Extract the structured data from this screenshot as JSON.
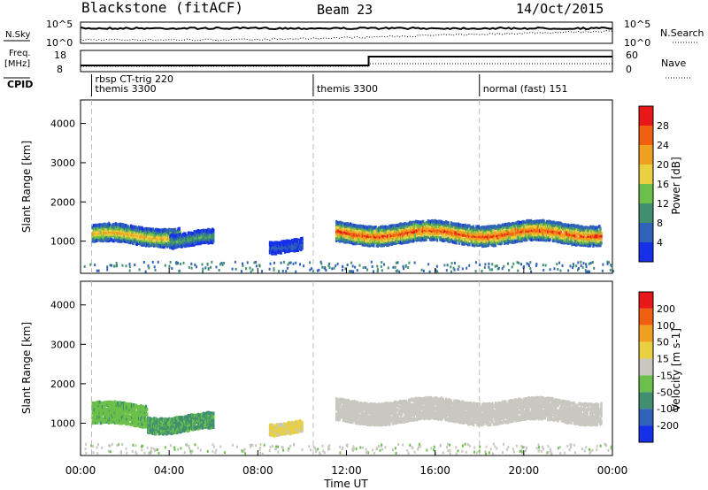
{
  "header": {
    "station": "Blackstone (fitACF)",
    "beam": "Beam 23",
    "date": "14/Oct/2015"
  },
  "top_panels": {
    "nsky_label": "N.Sky",
    "nsky_ticks": [
      "10^5",
      "10^0"
    ],
    "nsearch_label": "N.Search",
    "nsearch_ticks": [
      "10^5",
      "10^0"
    ],
    "freq_label": "Freq.",
    "freq_unit": "[MHz]",
    "freq_ticks": [
      "18",
      "8"
    ],
    "nave_label": "Nave",
    "nave_ticks": [
      "60",
      "0"
    ],
    "cpid_label": "CPID",
    "cpid_segments": [
      {
        "name": "rbsp CT-trig 220",
        "start_hour": 0.5
      },
      {
        "name": "themis 3300",
        "start_hour": 0.5
      },
      {
        "name": "themis 3300",
        "start_hour": 10.5
      },
      {
        "name": "normal (fast) 151",
        "start_hour": 18.0
      }
    ],
    "freq_step_hour": 13.0
  },
  "chart_data": [
    {
      "type": "heatmap",
      "name": "power",
      "ylabel": "Slant Range [km]",
      "ylim": [
        180,
        4600
      ],
      "xlim": [
        0,
        24
      ],
      "yticks": [
        "1000",
        "2000",
        "3000",
        "4000"
      ],
      "colorbar": {
        "label": "Power [dB]",
        "ticks": [
          "4",
          "8",
          "12",
          "16",
          "20",
          "24",
          "28"
        ],
        "range": [
          0,
          32
        ],
        "colors": [
          "#1530e8",
          "#2f62b8",
          "#3f8f70",
          "#6cc04a",
          "#e8d040",
          "#f0a020",
          "#f06010",
          "#e81818"
        ]
      },
      "echo_bands": [
        {
          "x": [
            0.5,
            4.5
          ],
          "center_km": 1150,
          "width_km": 400,
          "peak_db": 22
        },
        {
          "x": [
            4.0,
            6.0
          ],
          "center_km": 1050,
          "width_km": 300,
          "peak_db": 12
        },
        {
          "x": [
            8.5,
            10.0
          ],
          "center_km": 900,
          "width_km": 250,
          "peak_db": 6
        },
        {
          "x": [
            11.5,
            23.5
          ],
          "center_km": 1200,
          "width_km": 450,
          "peak_db": 28
        }
      ]
    },
    {
      "type": "heatmap",
      "name": "velocity",
      "ylabel": "Slant Range [km]",
      "ylim": [
        180,
        4600
      ],
      "xlim": [
        0,
        24
      ],
      "yticks": [
        "1000",
        "2000",
        "3000",
        "4000"
      ],
      "xticks": [
        "00:00",
        "04:00",
        "08:00",
        "12:00",
        "16:00",
        "20:00",
        "00:00"
      ],
      "xlabel": "Time UT",
      "colorbar": {
        "label": "Velocity [m s-1]",
        "ticks": [
          "200",
          "100",
          "50",
          "15",
          "-15",
          "-50",
          "-100",
          "-200"
        ],
        "range": [
          -250,
          250
        ],
        "colors": [
          "#1530e8",
          "#2f62b8",
          "#3f8f70",
          "#6cc04a",
          "#c8c8c0",
          "#e8d040",
          "#f0a020",
          "#f06010",
          "#e81818"
        ]
      },
      "echo_bands": [
        {
          "x": [
            0.5,
            3.0
          ],
          "center_km": 1200,
          "width_km": 500,
          "velocity": -60
        },
        {
          "x": [
            3.0,
            6.0
          ],
          "center_km": 1000,
          "width_km": 350,
          "velocity": -90
        },
        {
          "x": [
            8.5,
            10.0
          ],
          "center_km": 900,
          "width_km": 250,
          "velocity": 40
        },
        {
          "x": [
            11.5,
            23.5
          ],
          "center_km": 1300,
          "width_km": 500,
          "velocity": 0
        }
      ]
    }
  ]
}
